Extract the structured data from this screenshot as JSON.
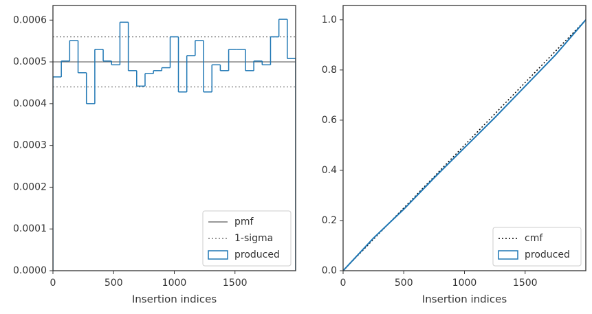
{
  "chart_data": [
    {
      "type": "step-histogram",
      "xlabel": "Insertion indices",
      "bins": [
        0,
        69,
        138,
        207,
        276,
        345,
        414,
        483,
        552,
        621,
        690,
        759,
        828,
        897,
        966,
        1034,
        1103,
        1172,
        1241,
        1310,
        1379,
        1448,
        1517,
        1586,
        1655,
        1724,
        1793,
        1862,
        1931,
        2000
      ],
      "series": [
        {
          "name": "produced",
          "color": "#1f77b4",
          "values": [
            0.000464,
            0.000502,
            0.000551,
            0.000474,
            0.0004,
            0.00053,
            0.000502,
            0.000493,
            0.000595,
            0.000479,
            0.000442,
            0.000472,
            0.000479,
            0.000486,
            0.00056,
            0.000428,
            0.000515,
            0.000551,
            0.000428,
            0.000493,
            0.000479,
            0.00053,
            0.00053,
            0.000479,
            0.000502,
            0.000493,
            0.00056,
            0.000602,
            0.000508
          ]
        }
      ],
      "lines": [
        {
          "name": "pmf",
          "color": "#777777",
          "style": "solid",
          "values": [
            0.0005
          ]
        },
        {
          "name": "1-sigma",
          "color": "#777777",
          "style": "dotted",
          "values": [
            0.00056,
            0.00044
          ]
        }
      ],
      "xlim": [
        0,
        2000
      ],
      "xticks": [
        0,
        500,
        1000,
        1500
      ],
      "ylim": [
        0,
        0.000635
      ],
      "yticks": [
        {
          "value": 0,
          "label": "0.0000"
        },
        {
          "value": 0.0001,
          "label": "0.0001"
        },
        {
          "value": 0.0002,
          "label": "0.0002"
        },
        {
          "value": 0.0003,
          "label": "0.0003"
        },
        {
          "value": 0.0004,
          "label": "0.0004"
        },
        {
          "value": 0.0005,
          "label": "0.0005"
        },
        {
          "value": 0.0006,
          "label": "0.0006"
        }
      ],
      "legend": "lower right"
    },
    {
      "type": "line",
      "xlabel": "Insertion indices",
      "series": [
        {
          "name": "cmf",
          "color": "#000000",
          "style": "dotted",
          "x": [
            0,
            2000
          ],
          "values": [
            0,
            1
          ]
        },
        {
          "name": "produced",
          "color": "#1f77b4",
          "style": "step",
          "x": [
            0,
            250,
            500,
            750,
            1000,
            1250,
            1500,
            1750,
            2000
          ],
          "values": [
            0,
            0.13,
            0.245,
            0.37,
            0.49,
            0.61,
            0.735,
            0.86,
            1.0
          ]
        }
      ],
      "xlim": [
        0,
        2000
      ],
      "xticks": [
        0,
        500,
        1000,
        1500
      ],
      "ylim": [
        0,
        1.057
      ],
      "yticks": [
        {
          "value": 0,
          "label": "0.0"
        },
        {
          "value": 0.2,
          "label": "0.2"
        },
        {
          "value": 0.4,
          "label": "0.4"
        },
        {
          "value": 0.6,
          "label": "0.6"
        },
        {
          "value": 0.8,
          "label": "0.8"
        },
        {
          "value": 1.0,
          "label": "1.0"
        }
      ],
      "legend": "lower right"
    }
  ]
}
